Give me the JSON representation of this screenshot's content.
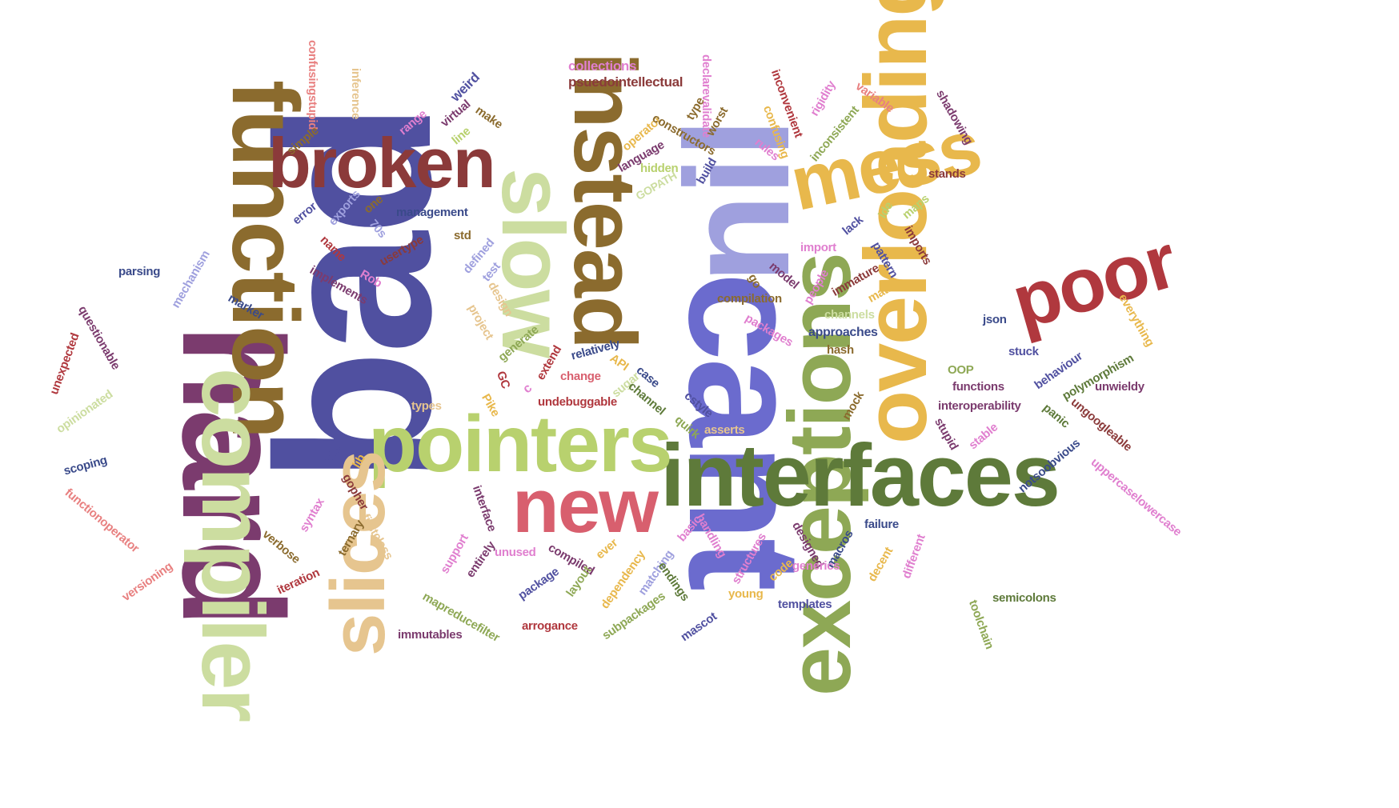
{
  "palette": {
    "olive_brown": "#8B6B2E",
    "maroon": "#8B3A3A",
    "plum": "#7B3B6E",
    "indigo": "#5050A0",
    "periwinkle": "#6B6BCE",
    "lavender": "#9FA0DE",
    "sage": "#CCDDA0",
    "lime": "#B8D16E",
    "mustard": "#E8B84C",
    "fern": "#5E7A3A",
    "moss": "#8EA855",
    "rose": "#D85F6E",
    "tan": "#E6C58F",
    "red": "#B0383E",
    "pink": "#E07FCF",
    "salmon": "#E88080",
    "navy": "#3A4A8A"
  },
  "words": [
    {
      "text": "bad",
      "color": "indigo"
    },
    {
      "text": "hard",
      "color": "plum"
    },
    {
      "text": "cant",
      "color": "periwinkle"
    },
    {
      "text": "function",
      "color": "olive_brown"
    },
    {
      "text": "nil",
      "color": "lavender"
    },
    {
      "text": "instead",
      "color": "olive_brown"
    },
    {
      "text": "exceptions",
      "color": "moss"
    },
    {
      "text": "overloading",
      "color": "mustard"
    },
    {
      "text": "compiler",
      "color": "sage"
    },
    {
      "text": "interfaces",
      "color": "fern"
    },
    {
      "text": "pointers",
      "color": "lime"
    },
    {
      "text": "broken",
      "color": "maroon"
    },
    {
      "text": "slow",
      "color": "sage"
    },
    {
      "text": "mess",
      "color": "mustard"
    },
    {
      "text": "slices",
      "color": "tan"
    },
    {
      "text": "poor",
      "color": "red"
    },
    {
      "text": "new",
      "color": "rose"
    },
    {
      "text": "collections",
      "color": "pink"
    },
    {
      "text": "psuedointellectual",
      "color": "maroon"
    },
    {
      "text": "confusingstupid",
      "color": "salmon"
    },
    {
      "text": "inference",
      "color": "tan"
    },
    {
      "text": "weird",
      "color": "indigo"
    },
    {
      "text": "declarevalidate",
      "color": "pink"
    },
    {
      "text": "inconvenient",
      "color": "red"
    },
    {
      "text": "rigidity",
      "color": "pink"
    },
    {
      "text": "variable",
      "color": "salmon"
    },
    {
      "text": "shadowing",
      "color": "plum"
    },
    {
      "text": "simple",
      "color": "olive_brown"
    },
    {
      "text": "range",
      "color": "pink"
    },
    {
      "text": "virtual",
      "color": "plum"
    },
    {
      "text": "line",
      "color": "lime"
    },
    {
      "text": "make",
      "color": "olive_brown"
    },
    {
      "text": "type",
      "color": "olive_brown"
    },
    {
      "text": "worst",
      "color": "olive_brown"
    },
    {
      "text": "operator",
      "color": "mustard"
    },
    {
      "text": "constructors",
      "color": "olive_brown"
    },
    {
      "text": "language",
      "color": "plum"
    },
    {
      "text": "hidden",
      "color": "lime"
    },
    {
      "text": "build",
      "color": "indigo"
    },
    {
      "text": "GOPATH",
      "color": "sage"
    },
    {
      "text": "rules",
      "color": "pink"
    },
    {
      "text": "confusing",
      "color": "mustard"
    },
    {
      "text": "inconsistent",
      "color": "moss"
    },
    {
      "text": "stands",
      "color": "maroon"
    },
    {
      "text": "error",
      "color": "indigo"
    },
    {
      "text": "exports",
      "color": "lavender"
    },
    {
      "text": "one",
      "color": "olive_brown"
    },
    {
      "text": "management",
      "color": "navy"
    },
    {
      "text": "70s",
      "color": "lavender"
    },
    {
      "text": "std",
      "color": "olive_brown"
    },
    {
      "text": "lack",
      "color": "indigo"
    },
    {
      "text": "ide",
      "color": "lime"
    },
    {
      "text": "maps",
      "color": "lime"
    },
    {
      "text": "imports",
      "color": "maroon"
    },
    {
      "text": "parsing",
      "color": "navy"
    },
    {
      "text": "mechanism",
      "color": "lavender"
    },
    {
      "text": "name",
      "color": "red"
    },
    {
      "text": "usertype",
      "color": "maroon"
    },
    {
      "text": "defined",
      "color": "lavender"
    },
    {
      "text": "test",
      "color": "lavender"
    },
    {
      "text": "import",
      "color": "pink"
    },
    {
      "text": "pattern",
      "color": "indigo"
    },
    {
      "text": "implements",
      "color": "plum"
    },
    {
      "text": "Rob",
      "color": "pink"
    },
    {
      "text": "design",
      "color": "tan"
    },
    {
      "text": "go",
      "color": "olive_brown"
    },
    {
      "text": "model",
      "color": "plum"
    },
    {
      "text": "people",
      "color": "pink"
    },
    {
      "text": "immature",
      "color": "maroon"
    },
    {
      "text": "math",
      "color": "mustard"
    },
    {
      "text": "marker",
      "color": "navy"
    },
    {
      "text": "project",
      "color": "tan"
    },
    {
      "text": "compilation",
      "color": "olive_brown"
    },
    {
      "text": "channels",
      "color": "sage"
    },
    {
      "text": "questionable",
      "color": "plum"
    },
    {
      "text": "packages",
      "color": "pink"
    },
    {
      "text": "approaches",
      "color": "navy"
    },
    {
      "text": "json",
      "color": "navy"
    },
    {
      "text": "everything",
      "color": "mustard"
    },
    {
      "text": "generate",
      "color": "moss"
    },
    {
      "text": "relatively",
      "color": "navy"
    },
    {
      "text": "hash",
      "color": "olive_brown"
    },
    {
      "text": "unexpected",
      "color": "red"
    },
    {
      "text": "GC",
      "color": "red"
    },
    {
      "text": "extend",
      "color": "red"
    },
    {
      "text": "API",
      "color": "mustard"
    },
    {
      "text": "stuck",
      "color": "indigo"
    },
    {
      "text": "behaviour",
      "color": "indigo"
    },
    {
      "text": "polymorphism",
      "color": "fern"
    },
    {
      "text": "c",
      "color": "pink"
    },
    {
      "text": "change",
      "color": "rose"
    },
    {
      "text": "case",
      "color": "navy"
    },
    {
      "text": "OOP",
      "color": "moss"
    },
    {
      "text": "sugar",
      "color": "sage"
    },
    {
      "text": "functions",
      "color": "plum"
    },
    {
      "text": "unwieldy",
      "color": "plum"
    },
    {
      "text": "opinionated",
      "color": "sage"
    },
    {
      "text": "Pike",
      "color": "mustard"
    },
    {
      "text": "undebuggable",
      "color": "red"
    },
    {
      "text": "channel",
      "color": "fern"
    },
    {
      "text": "cstyle",
      "color": "indigo"
    },
    {
      "text": "mock",
      "color": "olive_brown"
    },
    {
      "text": "interoperability",
      "color": "plum"
    },
    {
      "text": "types",
      "color": "tan"
    },
    {
      "text": "panic",
      "color": "fern"
    },
    {
      "text": "ungoogleable",
      "color": "maroon"
    },
    {
      "text": "quirk",
      "color": "moss"
    },
    {
      "text": "asserts",
      "color": "tan"
    },
    {
      "text": "stupid",
      "color": "plum"
    },
    {
      "text": "stable",
      "color": "pink"
    },
    {
      "text": "scoping",
      "color": "navy"
    },
    {
      "text": "data",
      "color": "indigo"
    },
    {
      "text": "lib",
      "color": "mustard"
    },
    {
      "text": "notsoobvious",
      "color": "navy"
    },
    {
      "text": "gopher",
      "color": "maroon"
    },
    {
      "text": "uppercaselowercase",
      "color": "pink"
    },
    {
      "text": "functionoperator",
      "color": "salmon"
    },
    {
      "text": "interface",
      "color": "plum"
    },
    {
      "text": "syntax",
      "color": "pink"
    },
    {
      "text": "firstclass",
      "color": "tan"
    },
    {
      "text": "basic",
      "color": "pink"
    },
    {
      "text": "handling",
      "color": "pink"
    },
    {
      "text": "designed",
      "color": "plum"
    },
    {
      "text": "macros",
      "color": "navy"
    },
    {
      "text": "failure",
      "color": "navy"
    },
    {
      "text": "ternary",
      "color": "olive_brown"
    },
    {
      "text": "verbose",
      "color": "olive_brown"
    },
    {
      "text": "different",
      "color": "pink"
    },
    {
      "text": "support",
      "color": "pink"
    },
    {
      "text": "unused",
      "color": "pink"
    },
    {
      "text": "compiled",
      "color": "plum"
    },
    {
      "text": "ever",
      "color": "mustard"
    },
    {
      "text": "dependency",
      "color": "mustard"
    },
    {
      "text": "matching",
      "color": "lavender"
    },
    {
      "text": "endings",
      "color": "fern"
    },
    {
      "text": "structures",
      "color": "pink"
    },
    {
      "text": "code",
      "color": "mustard"
    },
    {
      "text": "generics",
      "color": "pink"
    },
    {
      "text": "decent",
      "color": "mustard"
    },
    {
      "text": "versioning",
      "color": "salmon"
    },
    {
      "text": "iteration",
      "color": "red"
    },
    {
      "text": "entirely",
      "color": "plum"
    },
    {
      "text": "package",
      "color": "indigo"
    },
    {
      "text": "layout",
      "color": "moss"
    },
    {
      "text": "young",
      "color": "mustard"
    },
    {
      "text": "templates",
      "color": "indigo"
    },
    {
      "text": "semicolons",
      "color": "fern"
    },
    {
      "text": "mapreducefilter",
      "color": "moss"
    },
    {
      "text": "arrogance",
      "color": "red"
    },
    {
      "text": "subpackages",
      "color": "moss"
    },
    {
      "text": "mascot",
      "color": "indigo"
    },
    {
      "text": "toolchain",
      "color": "moss"
    },
    {
      "text": "immutables",
      "color": "plum"
    }
  ]
}
